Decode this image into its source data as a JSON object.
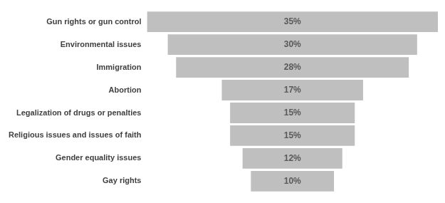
{
  "chart_data": {
    "type": "funnel",
    "categories": [
      "Gun rights or gun control",
      "Environmental issues",
      "Immigration",
      "Abortion",
      "Legalization of drugs or penalties",
      "Religious issues and issues of faith",
      "Gender equality issues",
      "Gay rights"
    ],
    "values": [
      35,
      30,
      28,
      17,
      15,
      15,
      12,
      10
    ],
    "value_labels": [
      "35%",
      "30%",
      "28%",
      "17%",
      "15%",
      "15%",
      "12%",
      "10%"
    ],
    "color": "#bfbfbf",
    "orientation": "horizontal",
    "data_labels": true,
    "grid": false,
    "tick_labels": "y"
  }
}
